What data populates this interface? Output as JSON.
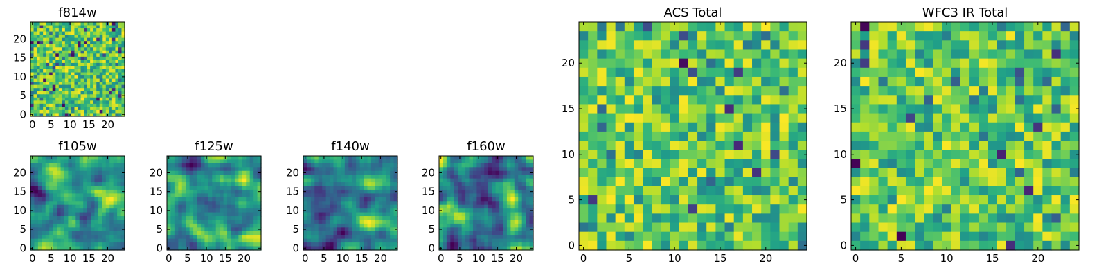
{
  "chart_data": [
    {
      "id": "f814w",
      "type": "heatmap",
      "title": "f814w",
      "resolution": "fine",
      "grid_cells": 30,
      "extent": [
        -0.5,
        24.5
      ],
      "xticks": [
        "0",
        "5",
        "10",
        "15",
        "20"
      ],
      "yticks": [
        "0",
        "5",
        "10",
        "15",
        "20"
      ],
      "colormap": "viridis",
      "seed": 814
    },
    {
      "id": "f105w",
      "type": "heatmap",
      "title": "f105w",
      "resolution": "smooth",
      "grid_cells": 25,
      "extent": [
        -0.5,
        24.5
      ],
      "xticks": [
        "0",
        "5",
        "10",
        "15",
        "20"
      ],
      "yticks": [
        "0",
        "5",
        "10",
        "15",
        "20"
      ],
      "colormap": "viridis",
      "seed": 105
    },
    {
      "id": "f125w",
      "type": "heatmap",
      "title": "f125w",
      "resolution": "smooth",
      "grid_cells": 25,
      "extent": [
        -0.5,
        24.5
      ],
      "xticks": [
        "0",
        "5",
        "10",
        "15",
        "20"
      ],
      "yticks": [
        "0",
        "5",
        "10",
        "15",
        "20"
      ],
      "colormap": "viridis",
      "seed": 125
    },
    {
      "id": "f140w",
      "type": "heatmap",
      "title": "f140w",
      "resolution": "smooth",
      "grid_cells": 25,
      "extent": [
        -0.5,
        24.5
      ],
      "xticks": [
        "0",
        "5",
        "10",
        "15",
        "20"
      ],
      "yticks": [
        "0",
        "5",
        "10",
        "15",
        "20"
      ],
      "colormap": "viridis",
      "seed": 140
    },
    {
      "id": "f160w",
      "type": "heatmap",
      "title": "f160w",
      "resolution": "smooth",
      "grid_cells": 25,
      "extent": [
        -0.5,
        24.5
      ],
      "xticks": [
        "0",
        "5",
        "10",
        "15",
        "20"
      ],
      "yticks": [
        "0",
        "5",
        "10",
        "15",
        "20"
      ],
      "colormap": "viridis",
      "seed": 160
    },
    {
      "id": "acs-total",
      "type": "heatmap",
      "title": "ACS Total",
      "resolution": "coarse",
      "grid_cells": 25,
      "extent": [
        -0.5,
        24.5
      ],
      "xticks": [
        "0",
        "5",
        "10",
        "15",
        "20"
      ],
      "yticks": [
        "0",
        "5",
        "10",
        "15",
        "20"
      ],
      "colormap": "viridis",
      "seed": 9001
    },
    {
      "id": "wfc3-ir-total",
      "type": "heatmap",
      "title": "WFC3 IR Total",
      "resolution": "coarse",
      "grid_cells": 25,
      "extent": [
        -0.5,
        24.5
      ],
      "xticks": [
        "0",
        "5",
        "10",
        "15",
        "20"
      ],
      "yticks": [
        "0",
        "5",
        "10",
        "15",
        "20"
      ],
      "colormap": "viridis",
      "seed": 9002
    }
  ]
}
